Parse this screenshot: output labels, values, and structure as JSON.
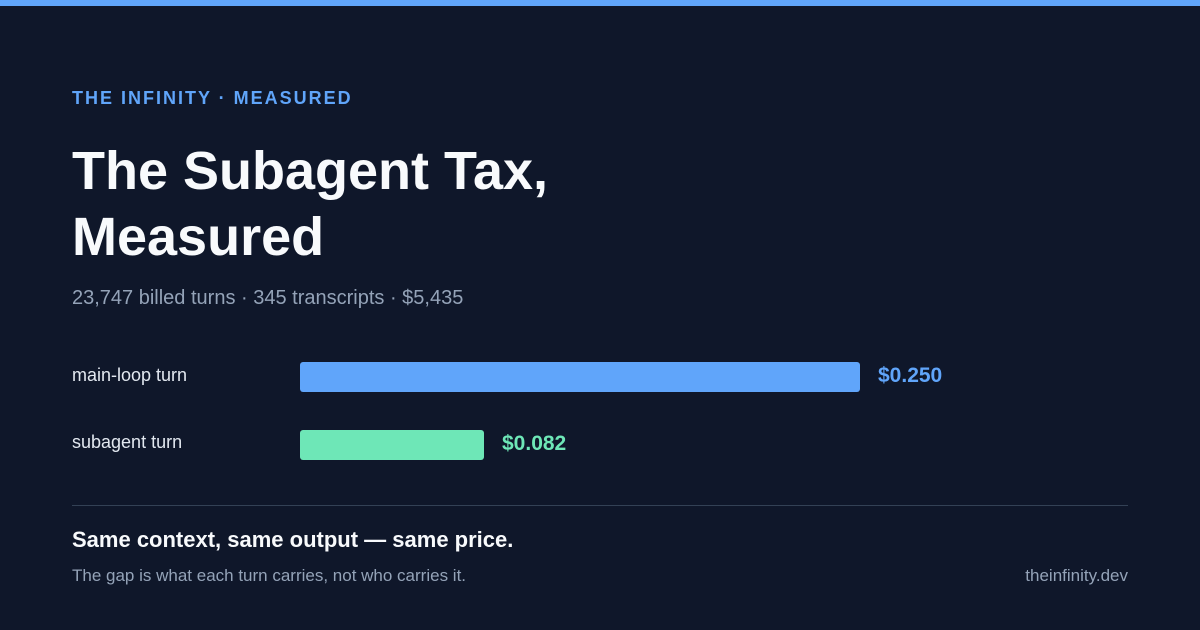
{
  "eyebrow": "THE INFINITY · MEASURED",
  "title_lines": [
    "The Subagent Tax,",
    "Measured"
  ],
  "subtitle": "23,747 billed turns · 345 transcripts · $5,435",
  "chart_data": {
    "type": "bar",
    "orientation": "horizontal",
    "categories": [
      "main-loop turn",
      "subagent turn"
    ],
    "values": [
      0.25,
      0.082
    ],
    "value_labels": [
      "$0.250",
      "$0.082"
    ],
    "colors": [
      "#60a5fa",
      "#6ee7b7"
    ],
    "xlim": [
      0,
      0.25
    ],
    "grid": false,
    "legend": "none"
  },
  "footer": {
    "tagline": "Same context, same output — same price.",
    "tagline_sub": "The gap is what each turn carries, not who carries it.",
    "site": "theinfinity.dev"
  },
  "colors": {
    "background": "#0f172a",
    "accent": "#60a5fa",
    "secondary": "#6ee7b7",
    "text": "#f8fafc",
    "muted": "#94a3b8"
  }
}
